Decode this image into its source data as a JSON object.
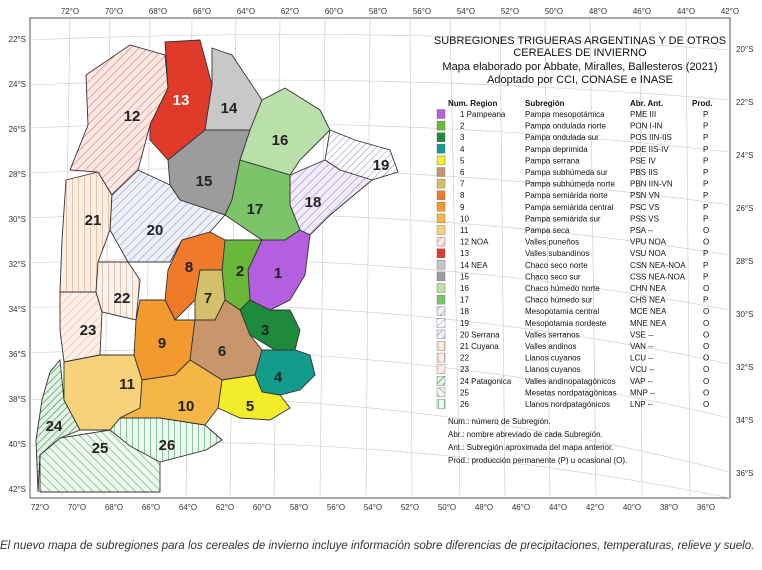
{
  "map": {
    "title_lines": [
      "SUBREGIONES TRIGUERAS ARGENTINAS Y DE OTROS",
      "CEREALES DE INVIERNO",
      "Mapa elaborado por Abbate, Miralles, Ballesteros (2021)",
      "Adoptado por CCI, CONASE e INASE"
    ],
    "top_coords": [
      "72°O",
      "70°O",
      "68°O",
      "66°O",
      "64°O",
      "62°O",
      "60°O",
      "58°O",
      "56°O",
      "54°O",
      "52°O",
      "50°O",
      "48°O",
      "46°O",
      "44°O",
      "42°O"
    ],
    "bottom_coords": [
      "72°O",
      "70°O",
      "68°O",
      "66°O",
      "64°O",
      "62°O",
      "60°O",
      "58°O",
      "56°O",
      "54°O",
      "52°O",
      "50°O",
      "48°O",
      "46°O",
      "44°O",
      "42°O",
      "40°O",
      "38°O",
      "36°O"
    ],
    "left_coords": [
      "22°S",
      "24°S",
      "26°S",
      "28°S",
      "30°S",
      "32°S",
      "34°S",
      "36°S",
      "38°S",
      "40°S",
      "42°S"
    ],
    "right_coords": [
      "20°S",
      "22°S",
      "24°S",
      "26°S",
      "28°S",
      "30°S",
      "32°S",
      "34°S",
      "36°S"
    ],
    "legend_headers": {
      "num_region": "Num. Region",
      "subregion": "Subregión",
      "abr": "Abr. Ant.",
      "prod": "Prod."
    },
    "legend": [
      {
        "num": "1 Pampeana",
        "name": "Pampa mesopotámica",
        "abr": "PME III",
        "prod": "P",
        "color": "#b45fe0",
        "pattern": "solid"
      },
      {
        "num": "2",
        "name": "Pampa ondulada norte",
        "abr": "PON I-IN",
        "prod": "P",
        "color": "#6ab83a",
        "pattern": "solid"
      },
      {
        "num": "3",
        "name": "Pampa ondulada sur",
        "abr": "POS IIN-IIS",
        "prod": "P",
        "color": "#1e8a3c",
        "pattern": "solid"
      },
      {
        "num": "4",
        "name": "Pampa deprimida",
        "abr": "PDE IIS-IV",
        "prod": "P",
        "color": "#139c8c",
        "pattern": "solid"
      },
      {
        "num": "5",
        "name": "Pampa serrana",
        "abr": "PSE IV",
        "prod": "P",
        "color": "#f2ec2a",
        "pattern": "solid"
      },
      {
        "num": "6",
        "name": "Pampa subhúmeda sur",
        "abr": "PBS IIS",
        "prod": "P",
        "color": "#c9956a",
        "pattern": "solid"
      },
      {
        "num": "7",
        "name": "Pampa subhúmeda norte",
        "abr": "PBN IIN-VN",
        "prod": "P",
        "color": "#d4c06a",
        "pattern": "solid"
      },
      {
        "num": "8",
        "name": "Pampa semiárida norte",
        "abr": "PSN VN",
        "prod": "P",
        "color": "#ee7a2a",
        "pattern": "solid"
      },
      {
        "num": "9",
        "name": "Pampa semiárida central",
        "abr": "PSC VS",
        "prod": "P",
        "color": "#f29a2e",
        "pattern": "solid"
      },
      {
        "num": "10",
        "name": "Pampa semiárida sur",
        "abr": "PSS VS",
        "prod": "P",
        "color": "#f5b648",
        "pattern": "solid"
      },
      {
        "num": "11",
        "name": "Pampa seca",
        "abr": "PSA --",
        "prod": "O",
        "color": "#f7d27a",
        "pattern": "solid"
      },
      {
        "num": "12 NOA",
        "name": "Valles puneños",
        "abr": "VPU NOA",
        "prod": "O",
        "color": "#e87a7a",
        "pattern": "hatch"
      },
      {
        "num": "13",
        "name": "Valles subandinos",
        "abr": "VSU NOA",
        "prod": "P",
        "color": "#e03a2a",
        "pattern": "solid"
      },
      {
        "num": "14 NEA",
        "name": "Chaco seco norte",
        "abr": "CSN NEA-NOA",
        "prod": "P",
        "color": "#c4c4c4",
        "pattern": "solid"
      },
      {
        "num": "15",
        "name": "Chaco seco sur",
        "abr": "CSS NEA-NOA",
        "prod": "P",
        "color": "#9c9c9c",
        "pattern": "solid"
      },
      {
        "num": "16",
        "name": "Chaco húmedo norte",
        "abr": "CHN NEA",
        "prod": "O",
        "color": "#b8e0a8",
        "pattern": "solid"
      },
      {
        "num": "17",
        "name": "Chaco húmedo sur",
        "abr": "CHS NEA",
        "prod": "P",
        "color": "#7cc46a",
        "pattern": "solid"
      },
      {
        "num": "18",
        "name": "Mesopotamia central",
        "abr": "MCE NEA",
        "prod": "O",
        "color": "#a080c8",
        "pattern": "hatch"
      },
      {
        "num": "19",
        "name": "Mesopotamia nordeste",
        "abr": "MNE NEA",
        "prod": "O",
        "color": "#3a3aa0",
        "pattern": "hatch"
      },
      {
        "num": "20 Serrana",
        "name": "Valles serranos",
        "abr": "VSE --",
        "prod": "O",
        "color": "#9aa6c8",
        "pattern": "hatch"
      },
      {
        "num": "21 Cuyana",
        "name": "Valles andinos",
        "abr": "VAN --",
        "prod": "O",
        "color": "#e8a878",
        "pattern": "hatch"
      },
      {
        "num": "22",
        "name": "Llanos cuyanos",
        "abr": "LCU --",
        "prod": "O",
        "color": "#d8b8a0",
        "pattern": "hatch"
      },
      {
        "num": "23",
        "name": "Llanos cuyanos",
        "abr": "VCU --",
        "prod": "O",
        "color": "#f0b898",
        "pattern": "hatch"
      },
      {
        "num": "24 Patagonica",
        "name": "Valles andinopatagónicos",
        "abr": "VAP --",
        "prod": "O",
        "color": "#2e8a4a",
        "pattern": "hatch"
      },
      {
        "num": "25",
        "name": "Mesetas nordpatagónicas",
        "abr": "MNP --",
        "prod": "O",
        "color": "#5aa66a",
        "pattern": "hatch"
      },
      {
        "num": "26",
        "name": "Llanos nordpatagónicos",
        "abr": "LNP --",
        "prod": "O",
        "color": "#3c9e58",
        "pattern": "hatch"
      }
    ],
    "notes": [
      "Num.: número de Subregión.",
      "Abr.: nombre abreviado de cada Subregión.",
      "Ant.: Subregión aproximada del mapa anterior.",
      "Prod.: producción permanente (P) u ocasional (O)."
    ],
    "region_labels": [
      "1",
      "2",
      "3",
      "4",
      "5",
      "6",
      "7",
      "8",
      "9",
      "10",
      "11",
      "12",
      "13",
      "14",
      "15",
      "16",
      "17",
      "18",
      "19",
      "20",
      "21",
      "22",
      "23",
      "24",
      "25",
      "26"
    ]
  },
  "caption": "El nuevo mapa de subregiones para los cereales de invierno incluye información sobre diferencias de precipitaciones, temperaturas, relieve y suelo."
}
